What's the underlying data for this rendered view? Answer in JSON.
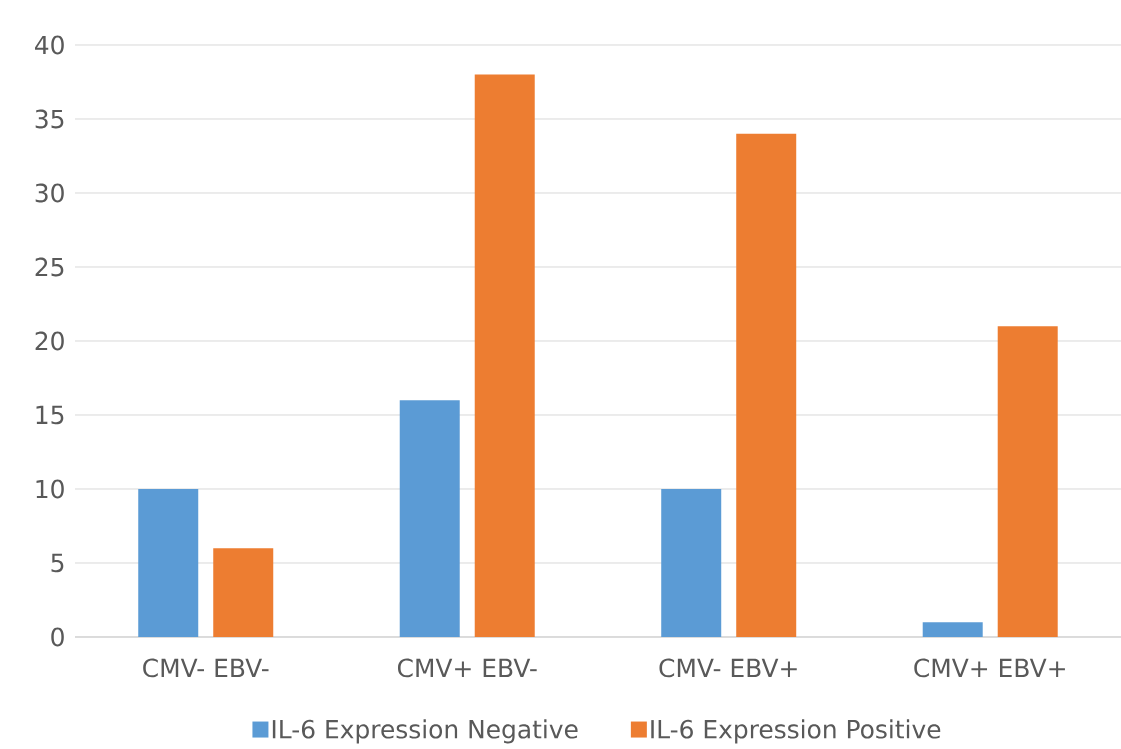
{
  "chart_data": {
    "type": "bar",
    "categories": [
      "CMV-  EBV-",
      "CMV+  EBV-",
      "CMV-  EBV+",
      "CMV+  EBV+"
    ],
    "series": [
      {
        "name": "IL-6 Expression Negative",
        "color": "#5b9bd5",
        "values": [
          10,
          16,
          10,
          1
        ]
      },
      {
        "name": "IL-6 Expression Positive",
        "color": "#ed7d31",
        "values": [
          6,
          38,
          34,
          21
        ]
      }
    ],
    "ylim": [
      0,
      40
    ],
    "yticks": [
      0,
      5,
      10,
      15,
      20,
      25,
      30,
      35,
      40
    ],
    "grid": "y",
    "legend": "bottom"
  }
}
